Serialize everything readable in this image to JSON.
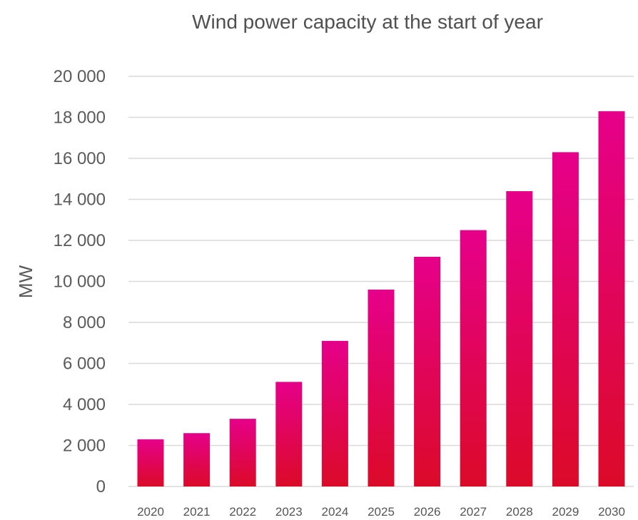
{
  "chart_data": {
    "type": "bar",
    "title": "Wind power capacity at the start of year",
    "xlabel": "",
    "ylabel": "MW",
    "categories": [
      "2020",
      "2021",
      "2022",
      "2023",
      "2024",
      "2025",
      "2026",
      "2027",
      "2028",
      "2029",
      "2030"
    ],
    "values": [
      2300,
      2600,
      3300,
      5100,
      7100,
      9600,
      11200,
      12500,
      14400,
      16300,
      18300
    ],
    "ylim": [
      0,
      20000
    ],
    "yticks": [
      0,
      2000,
      4000,
      6000,
      8000,
      10000,
      12000,
      14000,
      16000,
      18000,
      20000
    ],
    "ytick_labels": [
      "0",
      "2 000",
      "4 000",
      "6 000",
      "8 000",
      "10 000",
      "12 000",
      "14 000",
      "16 000",
      "18 000",
      "20 000"
    ],
    "grid": true,
    "bar_color_top": "#e6008a",
    "bar_color_bottom": "#dc0a28"
  }
}
